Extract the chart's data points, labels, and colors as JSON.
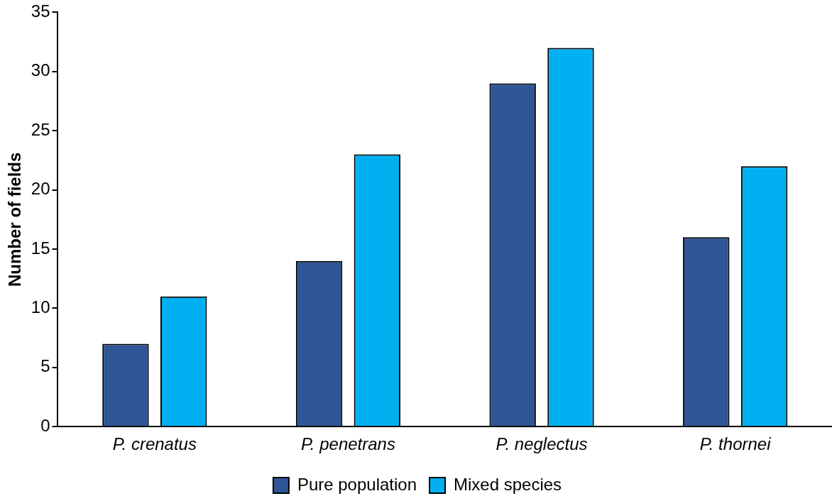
{
  "chart_data": {
    "type": "bar",
    "ylabel": "Number of fields",
    "categories": [
      "P. crenatus",
      "P. penetrans",
      "P. neglectus",
      "P. thornei"
    ],
    "series": [
      {
        "name": "Pure population",
        "color": "#2f5597",
        "values": [
          7,
          14,
          29,
          16
        ]
      },
      {
        "name": "Mixed species",
        "color": "#00b0f0",
        "values": [
          11,
          23,
          32,
          22
        ]
      }
    ],
    "ylim": [
      0,
      35
    ],
    "yticks": [
      0,
      5,
      10,
      15,
      20,
      25,
      30,
      35
    ],
    "grid": false,
    "legend": "bottom"
  }
}
